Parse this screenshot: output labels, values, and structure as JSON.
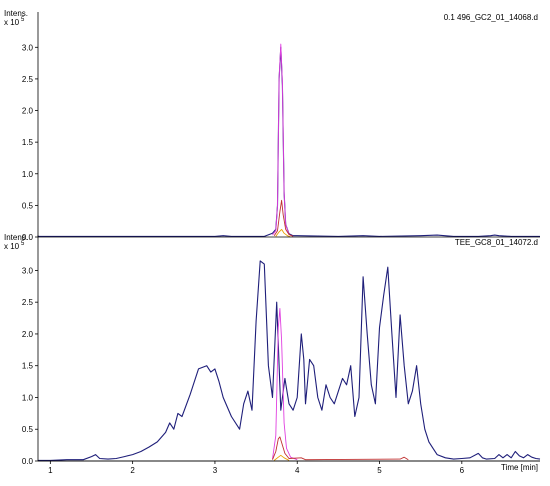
{
  "chart_data": {
    "type": "line",
    "x_unit_label": "Time [min]",
    "x_range": [
      0.85,
      6.95
    ],
    "x_ticks": [
      1,
      2,
      3,
      4,
      5,
      6
    ],
    "panels": [
      {
        "file_label": "0.1 496_GC2_01_14068.d",
        "y_label": "Intens.",
        "y_multiplier": "x 10",
        "y_exponent": "5",
        "y_ticks": [
          0.0,
          0.5,
          1.0,
          1.5,
          2.0,
          2.5,
          3.0
        ],
        "y_range": [
          0.0,
          3.4
        ],
        "series": [
          {
            "color": "#1f1f7a",
            "points": [
              [
                0.85,
                0.01
              ],
              [
                1.5,
                0.01
              ],
              [
                2.0,
                0.01
              ],
              [
                3.0,
                0.01
              ],
              [
                3.1,
                0.02
              ],
              [
                3.2,
                0.01
              ],
              [
                3.6,
                0.01
              ],
              [
                3.7,
                0.06
              ],
              [
                3.74,
                0.12
              ],
              [
                3.76,
                0.5
              ],
              [
                3.78,
                2.5
              ],
              [
                3.8,
                3.0
              ],
              [
                3.82,
                2.4
              ],
              [
                3.84,
                0.7
              ],
              [
                3.86,
                0.2
              ],
              [
                3.9,
                0.05
              ],
              [
                3.95,
                0.02
              ],
              [
                4.0,
                0.02
              ],
              [
                4.5,
                0.01
              ],
              [
                4.8,
                0.02
              ],
              [
                5.0,
                0.01
              ],
              [
                5.5,
                0.02
              ],
              [
                5.7,
                0.03
              ],
              [
                5.9,
                0.01
              ],
              [
                6.2,
                0.01
              ],
              [
                6.35,
                0.02
              ],
              [
                6.4,
                0.03
              ],
              [
                6.45,
                0.02
              ],
              [
                6.6,
                0.01
              ],
              [
                6.95,
                0.01
              ]
            ]
          },
          {
            "color": "#e040e0",
            "points": [
              [
                3.7,
                0.03
              ],
              [
                3.74,
                0.1
              ],
              [
                3.76,
                0.5
              ],
              [
                3.78,
                2.5
              ],
              [
                3.8,
                3.05
              ],
              [
                3.82,
                2.45
              ],
              [
                3.84,
                0.7
              ],
              [
                3.86,
                0.2
              ],
              [
                3.9,
                0.04
              ],
              [
                3.95,
                0.01
              ]
            ]
          },
          {
            "color": "#c03030",
            "points": [
              [
                3.72,
                0.02
              ],
              [
                3.76,
                0.1
              ],
              [
                3.79,
                0.4
              ],
              [
                3.81,
                0.58
              ],
              [
                3.83,
                0.35
              ],
              [
                3.86,
                0.12
              ],
              [
                3.9,
                0.04
              ],
              [
                3.95,
                0.01
              ]
            ]
          },
          {
            "color": "#e8a000",
            "points": [
              [
                3.74,
                0.01
              ],
              [
                3.78,
                0.08
              ],
              [
                3.81,
                0.12
              ],
              [
                3.84,
                0.06
              ],
              [
                3.88,
                0.02
              ],
              [
                3.92,
                0.0
              ]
            ]
          }
        ]
      },
      {
        "file_label": "TEE_GC8_01_14072.d",
        "y_label": "Intens.",
        "y_multiplier": "x 10",
        "y_exponent": "5",
        "y_ticks": [
          0.0,
          0.5,
          1.0,
          1.5,
          2.0,
          2.5,
          3.0
        ],
        "y_range": [
          0.0,
          3.4
        ],
        "series": [
          {
            "color": "#1f1f7a",
            "points": [
              [
                0.85,
                0.01
              ],
              [
                1.0,
                0.01
              ],
              [
                1.2,
                0.02
              ],
              [
                1.4,
                0.02
              ],
              [
                1.5,
                0.07
              ],
              [
                1.55,
                0.1
              ],
              [
                1.6,
                0.04
              ],
              [
                1.7,
                0.03
              ],
              [
                1.8,
                0.04
              ],
              [
                1.9,
                0.07
              ],
              [
                2.0,
                0.1
              ],
              [
                2.1,
                0.15
              ],
              [
                2.2,
                0.22
              ],
              [
                2.3,
                0.3
              ],
              [
                2.4,
                0.45
              ],
              [
                2.45,
                0.6
              ],
              [
                2.5,
                0.5
              ],
              [
                2.55,
                0.75
              ],
              [
                2.6,
                0.7
              ],
              [
                2.7,
                1.05
              ],
              [
                2.8,
                1.45
              ],
              [
                2.9,
                1.5
              ],
              [
                2.95,
                1.4
              ],
              [
                3.0,
                1.45
              ],
              [
                3.05,
                1.25
              ],
              [
                3.1,
                1.0
              ],
              [
                3.2,
                0.7
              ],
              [
                3.3,
                0.5
              ],
              [
                3.35,
                0.9
              ],
              [
                3.4,
                1.1
              ],
              [
                3.45,
                0.8
              ],
              [
                3.5,
                2.2
              ],
              [
                3.55,
                3.15
              ],
              [
                3.6,
                3.1
              ],
              [
                3.65,
                1.5
              ],
              [
                3.7,
                1.0
              ],
              [
                3.75,
                2.5
              ],
              [
                3.8,
                0.8
              ],
              [
                3.85,
                1.3
              ],
              [
                3.9,
                0.9
              ],
              [
                3.95,
                0.8
              ],
              [
                4.0,
                1.0
              ],
              [
                4.05,
                2.0
              ],
              [
                4.08,
                1.6
              ],
              [
                4.1,
                0.9
              ],
              [
                4.15,
                1.6
              ],
              [
                4.2,
                1.5
              ],
              [
                4.25,
                1.0
              ],
              [
                4.3,
                0.8
              ],
              [
                4.35,
                1.2
              ],
              [
                4.4,
                1.0
              ],
              [
                4.45,
                0.9
              ],
              [
                4.5,
                1.1
              ],
              [
                4.55,
                1.3
              ],
              [
                4.6,
                1.2
              ],
              [
                4.65,
                1.5
              ],
              [
                4.7,
                0.7
              ],
              [
                4.75,
                1.0
              ],
              [
                4.8,
                2.9
              ],
              [
                4.85,
                2.0
              ],
              [
                4.9,
                1.2
              ],
              [
                4.95,
                0.9
              ],
              [
                5.0,
                2.1
              ],
              [
                5.05,
                2.6
              ],
              [
                5.1,
                3.05
              ],
              [
                5.15,
                2.0
              ],
              [
                5.2,
                1.0
              ],
              [
                5.25,
                2.3
              ],
              [
                5.3,
                1.5
              ],
              [
                5.35,
                0.9
              ],
              [
                5.4,
                1.1
              ],
              [
                5.45,
                1.5
              ],
              [
                5.5,
                0.9
              ],
              [
                5.55,
                0.5
              ],
              [
                5.6,
                0.3
              ],
              [
                5.65,
                0.2
              ],
              [
                5.7,
                0.1
              ],
              [
                5.8,
                0.05
              ],
              [
                5.9,
                0.03
              ],
              [
                6.0,
                0.04
              ],
              [
                6.1,
                0.05
              ],
              [
                6.2,
                0.12
              ],
              [
                6.25,
                0.05
              ],
              [
                6.3,
                0.03
              ],
              [
                6.4,
                0.04
              ],
              [
                6.45,
                0.1
              ],
              [
                6.5,
                0.05
              ],
              [
                6.55,
                0.1
              ],
              [
                6.6,
                0.05
              ],
              [
                6.65,
                0.15
              ],
              [
                6.7,
                0.08
              ],
              [
                6.75,
                0.05
              ],
              [
                6.8,
                0.1
              ],
              [
                6.85,
                0.06
              ],
              [
                6.9,
                0.04
              ],
              [
                6.95,
                0.03
              ]
            ]
          },
          {
            "color": "#e040e0",
            "points": [
              [
                3.7,
                0.03
              ],
              [
                3.74,
                0.4
              ],
              [
                3.77,
                2.1
              ],
              [
                3.79,
                2.4
              ],
              [
                3.81,
                1.9
              ],
              [
                3.84,
                0.6
              ],
              [
                3.87,
                0.2
              ],
              [
                3.92,
                0.06
              ],
              [
                4.0,
                0.02
              ]
            ]
          },
          {
            "color": "#c03030",
            "points": [
              [
                3.7,
                0.02
              ],
              [
                3.74,
                0.15
              ],
              [
                3.77,
                0.35
              ],
              [
                3.79,
                0.38
              ],
              [
                3.82,
                0.25
              ],
              [
                3.85,
                0.12
              ],
              [
                3.9,
                0.04
              ],
              [
                4.05,
                0.05
              ],
              [
                4.1,
                0.02
              ],
              [
                5.25,
                0.03
              ],
              [
                5.3,
                0.06
              ],
              [
                5.35,
                0.02
              ]
            ]
          },
          {
            "color": "#e8a000",
            "points": [
              [
                3.72,
                0.01
              ],
              [
                3.77,
                0.06
              ],
              [
                3.8,
                0.09
              ],
              [
                3.84,
                0.05
              ],
              [
                3.9,
                0.01
              ]
            ]
          }
        ]
      }
    ]
  }
}
